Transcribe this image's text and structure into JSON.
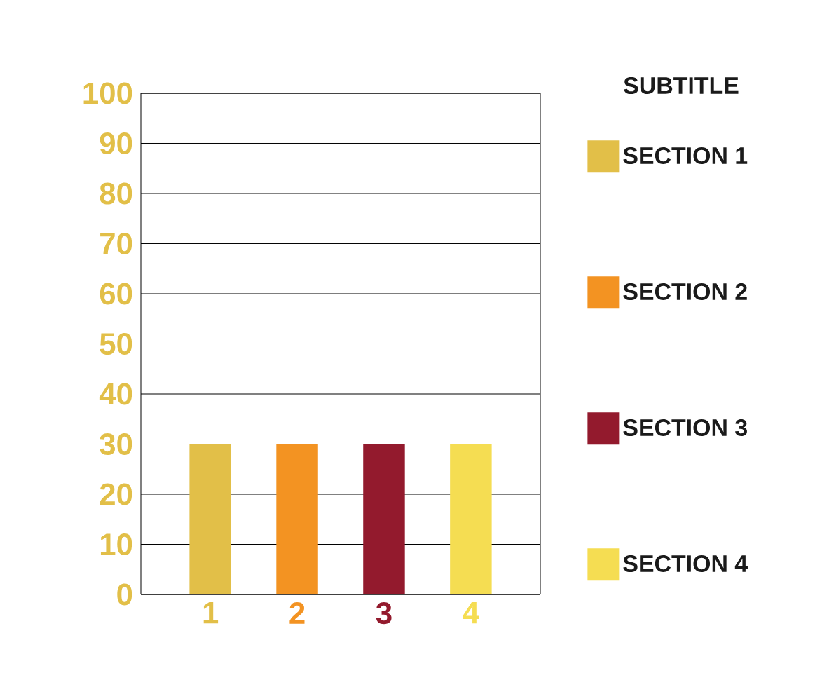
{
  "chart_data": {
    "type": "bar",
    "legend_title": "SUBTITLE",
    "categories": [
      "1",
      "2",
      "3",
      "4"
    ],
    "series": [
      {
        "name": "SECTION 1",
        "color": "#e2bf48",
        "values": [
          30,
          null,
          null,
          null
        ]
      },
      {
        "name": "SECTION 2",
        "color": "#f39322",
        "values": [
          null,
          30,
          null,
          null
        ]
      },
      {
        "name": "SECTION 3",
        "color": "#931a2d",
        "values": [
          null,
          null,
          30,
          null
        ]
      },
      {
        "name": "SECTION 4",
        "color": "#f5dd52",
        "values": [
          null,
          null,
          null,
          30
        ]
      }
    ],
    "ylim": [
      0,
      100
    ],
    "yticks": [
      0,
      10,
      20,
      30,
      40,
      50,
      60,
      70,
      80,
      90,
      100
    ],
    "grid": "y",
    "legend": "right"
  }
}
